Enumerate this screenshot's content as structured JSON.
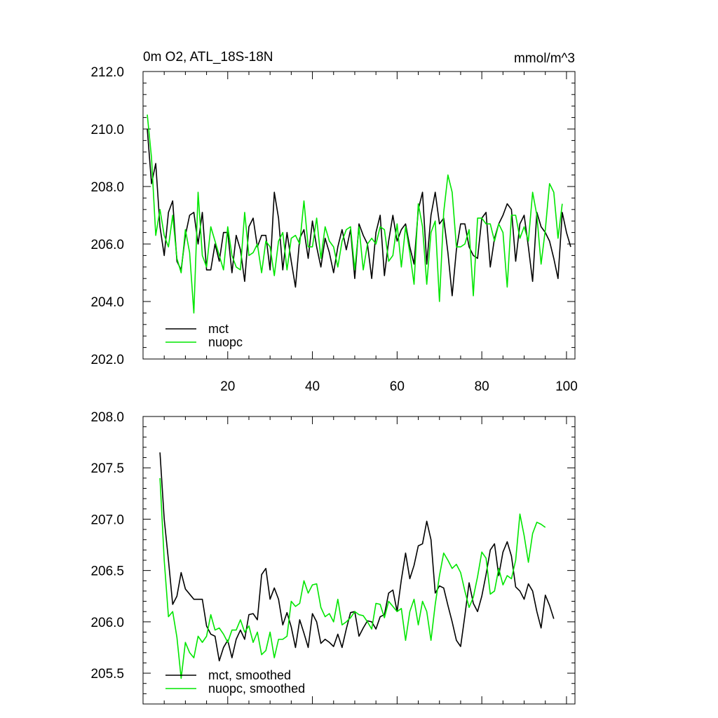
{
  "chart_data": [
    {
      "type": "line",
      "title": "0m O2, ATL_18S-18N",
      "units": "mmol/m^3",
      "xlim": [
        0,
        102
      ],
      "ylim": [
        202,
        212
      ],
      "x_ticks": [
        20,
        40,
        60,
        80,
        100
      ],
      "y_ticks": [
        202.0,
        204.0,
        206.0,
        208.0,
        210.0,
        212.0
      ],
      "legend_position": "bottom-left",
      "series": [
        {
          "name": "mct",
          "color": "#000000",
          "x_start": 1,
          "values": [
            210.0,
            208.1,
            208.8,
            206.6,
            205.6,
            207.1,
            207.5,
            205.4,
            205.1,
            206.3,
            207.0,
            207.1,
            206.0,
            207.1,
            205.1,
            205.1,
            206.0,
            205.4,
            206.4,
            206.4,
            205.0,
            206.3,
            205.8,
            204.7,
            206.6,
            206.9,
            205.9,
            206.3,
            206.3,
            205.1,
            207.8,
            206.9,
            205.1,
            206.4,
            205.4,
            204.5,
            206.2,
            206.5,
            205.5,
            206.8,
            205.9,
            205.2,
            206.2,
            205.7,
            205.0,
            205.9,
            206.5,
            205.8,
            206.5,
            204.8,
            206.7,
            206.3,
            206.0,
            204.8,
            206.4,
            207.0,
            204.9,
            206.1,
            207.0,
            206.1,
            206.5,
            206.7,
            205.9,
            205.3,
            207.2,
            207.8,
            205.3,
            207.0,
            207.8,
            206.7,
            206.9,
            205.7,
            204.2,
            205.8,
            206.7,
            206.7,
            205.9,
            205.6,
            205.5,
            206.9,
            207.1,
            205.2,
            206.2,
            206.7,
            207.0,
            207.4,
            207.2,
            205.4,
            206.7,
            207.0,
            205.9,
            204.7,
            207.1,
            206.6,
            206.4,
            206.1,
            205.5,
            204.8,
            207.1,
            206.4,
            205.9
          ]
        },
        {
          "name": "nuopc",
          "color": "#00e600",
          "x_start": 1,
          "values": [
            210.5,
            209.0,
            206.3,
            207.2,
            206.3,
            205.9,
            207.0,
            205.5,
            205.0,
            206.5,
            205.7,
            203.6,
            207.8,
            205.6,
            205.2,
            206.6,
            206.1,
            205.6,
            205.1,
            206.6,
            205.6,
            205.2,
            205.1,
            207.1,
            205.6,
            205.7,
            206.0,
            205.0,
            206.1,
            205.9,
            204.9,
            206.1,
            206.4,
            205.1,
            206.2,
            206.3,
            206.0,
            207.5,
            205.9,
            205.9,
            206.9,
            205.5,
            206.6,
            206.1,
            205.9,
            205.2,
            206.1,
            206.5,
            206.6,
            205.1,
            206.6,
            205.1,
            206.0,
            206.2,
            206.0,
            206.6,
            206.5,
            205.4,
            205.6,
            206.7,
            205.2,
            206.6,
            205.7,
            204.6,
            207.4,
            206.6,
            204.6,
            206.4,
            206.8,
            204.0,
            207.1,
            208.4,
            207.8,
            205.9,
            205.9,
            206.0,
            206.5,
            204.2,
            206.9,
            206.9,
            206.7,
            206.7,
            206.1,
            206.7,
            206.4,
            204.5,
            207.0,
            207.0,
            206.2,
            206.6,
            206.1,
            207.8,
            207.0,
            205.3,
            206.5,
            208.1,
            207.8,
            206.2,
            207.4
          ]
        }
      ]
    },
    {
      "type": "line",
      "title": "",
      "xlim": [
        0,
        102
      ],
      "ylim": [
        205.2,
        208.0
      ],
      "x_ticks": [
        20,
        40,
        60,
        80,
        100
      ],
      "y_ticks": [
        205.5,
        206.0,
        206.5,
        207.0,
        207.5,
        208.0
      ],
      "legend_position": "bottom-left",
      "series": [
        {
          "name": "mct, smoothed",
          "color": "#000000",
          "x_start": 4,
          "values": [
            207.65,
            207.0,
            206.6,
            206.17,
            206.25,
            206.48,
            206.32,
            206.27,
            206.22,
            206.22,
            206.22,
            205.96,
            205.88,
            205.86,
            205.62,
            205.75,
            205.82,
            205.65,
            205.83,
            205.92,
            205.83,
            206.07,
            206.08,
            206.02,
            206.46,
            206.52,
            206.22,
            206.33,
            206.22,
            205.97,
            206.09,
            205.95,
            205.75,
            206.02,
            205.89,
            205.75,
            206.08,
            206.0,
            205.79,
            205.83,
            205.8,
            205.76,
            205.88,
            205.75,
            205.93,
            206.09,
            206.1,
            205.86,
            205.94,
            206.01,
            206.0,
            205.93,
            206.05,
            206.07,
            206.28,
            206.31,
            206.1,
            206.41,
            206.67,
            206.42,
            206.55,
            206.74,
            206.76,
            206.98,
            206.8,
            206.28,
            206.35,
            206.33,
            206.16,
            206.0,
            205.82,
            205.76,
            206.06,
            206.38,
            206.18,
            206.1,
            206.25,
            206.46,
            206.7,
            206.76,
            206.45,
            206.68,
            206.78,
            206.64,
            206.34,
            206.3,
            206.22,
            206.37,
            206.3,
            206.1,
            205.94,
            206.26,
            206.16,
            206.03
          ]
        },
        {
          "name": "nuopc, smoothed",
          "color": "#00e600",
          "x_start": 4,
          "values": [
            207.4,
            206.6,
            206.05,
            206.1,
            205.85,
            205.45,
            205.8,
            205.7,
            205.65,
            205.86,
            205.8,
            205.86,
            206.07,
            205.92,
            205.94,
            205.88,
            205.8,
            205.92,
            205.92,
            206.02,
            205.9,
            205.96,
            205.8,
            205.9,
            205.68,
            205.72,
            205.9,
            205.65,
            205.83,
            205.83,
            205.86,
            206.2,
            206.15,
            206.18,
            206.4,
            206.28,
            206.36,
            206.37,
            206.14,
            206.05,
            206.08,
            206.0,
            206.22,
            205.97,
            206.0,
            206.04,
            206.1,
            206.07,
            206.06,
            206.0,
            205.93,
            206.18,
            206.17,
            206.04,
            206.2,
            206.15,
            206.1,
            206.13,
            205.82,
            206.1,
            206.22,
            205.97,
            206.2,
            206.1,
            205.82,
            206.17,
            206.45,
            206.67,
            206.6,
            206.52,
            206.56,
            206.48,
            206.3,
            206.14,
            206.24,
            206.44,
            206.68,
            206.62,
            206.27,
            206.3,
            206.52,
            206.36,
            206.45,
            206.42,
            206.6,
            207.05,
            206.84,
            206.58,
            206.86,
            206.97,
            206.95,
            206.92
          ]
        }
      ]
    }
  ]
}
